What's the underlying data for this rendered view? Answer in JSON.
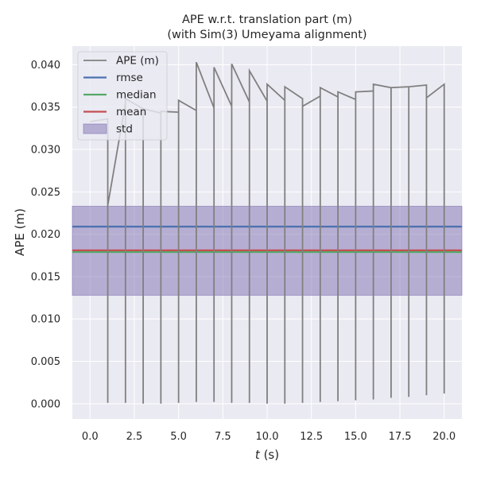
{
  "chart_data": {
    "type": "line",
    "title": "APE w.r.t. translation part (m)",
    "subtitle": "(with Sim(3) Umeyama alignment)",
    "xlabel_italic": "t",
    "xlabel_unit": " (s)",
    "ylabel": "APE (m)",
    "xlim": [
      -1.0,
      21.0
    ],
    "ylim": [
      -0.0018,
      0.0422
    ],
    "xticks": [
      0,
      2.5,
      5,
      7.5,
      10,
      12.5,
      15,
      17.5,
      20
    ],
    "xtick_labels": [
      "0.0",
      "2.5",
      "5.0",
      "7.5",
      "10.0",
      "12.5",
      "15.0",
      "17.5",
      "20.0"
    ],
    "yticks": [
      0.0,
      0.005,
      0.01,
      0.015,
      0.02,
      0.025,
      0.03,
      0.035,
      0.04
    ],
    "ytick_labels": [
      "0.000",
      "0.005",
      "0.010",
      "0.015",
      "0.020",
      "0.025",
      "0.030",
      "0.035",
      "0.040"
    ],
    "grid": true,
    "legend_placement": "upper-left",
    "colors": {
      "background": "#eaeaf2",
      "grid": "#ffffff",
      "ape": "#808080",
      "rmse": "#4c72b0",
      "median": "#55a868",
      "mean": "#c44e52",
      "std": "#8172b2"
    },
    "series": [
      {
        "name": "APE (m)",
        "type": "line",
        "x": [
          0,
          1,
          1,
          1,
          2,
          2,
          2,
          3,
          3,
          3,
          4,
          4,
          4,
          5,
          5,
          5,
          6,
          6,
          6,
          7,
          7,
          7,
          8,
          8,
          8,
          9,
          9,
          9,
          10,
          10,
          10,
          11,
          11,
          11,
          12,
          12,
          12,
          13,
          13,
          13,
          14,
          14,
          14,
          15,
          15,
          15,
          16,
          16,
          16,
          17,
          17,
          17,
          18,
          18,
          18,
          19,
          19,
          19,
          20,
          20,
          20
        ],
        "y": [
          0.0333,
          0.0336,
          0.0001,
          0.0234,
          0.0355,
          0.0001,
          0.036,
          0.0348,
          0.0,
          0.0348,
          0.0343,
          0.0,
          0.0345,
          0.0344,
          0.0001,
          0.0358,
          0.0346,
          0.0002,
          0.0403,
          0.0349,
          0.0002,
          0.0397,
          0.0351,
          0.0001,
          0.0401,
          0.0356,
          0.0001,
          0.0393,
          0.0357,
          0.0,
          0.0377,
          0.0358,
          0.0,
          0.0374,
          0.036,
          0.0001,
          0.0351,
          0.0363,
          0.0002,
          0.0373,
          0.0362,
          0.0003,
          0.0368,
          0.0359,
          0.0004,
          0.0368,
          0.0369,
          0.0005,
          0.0377,
          0.0373,
          0.0007,
          0.0373,
          0.0374,
          0.0008,
          0.0374,
          0.0376,
          0.001,
          0.0361,
          0.0377,
          0.0012,
          0.0074
        ]
      },
      {
        "name": "rmse",
        "type": "hline",
        "value": 0.0209
      },
      {
        "name": "median",
        "type": "hline",
        "value": 0.0179
      },
      {
        "name": "mean",
        "type": "hline",
        "value": 0.0181
      },
      {
        "name": "std",
        "type": "band",
        "lower": 0.0128,
        "upper": 0.0233
      }
    ]
  }
}
